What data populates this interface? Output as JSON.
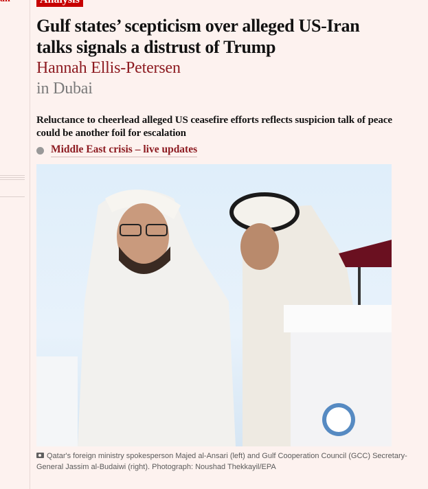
{
  "left_column": {
    "label": "an"
  },
  "article": {
    "kicker": "Analysis",
    "headline": "Gulf states’ scepticism over alleged US-Iran talks signals a distrust of Trump",
    "byline": "Hannah Ellis-Petersen",
    "location": "in Dubai",
    "standfirst": "Reluctance to cheerlead alleged US ceasefire efforts reflects suspicion talk of peace could be another foil for escalation",
    "live_link": "Middle East crisis – live updates",
    "caption": "Qatar's foreign ministry spokesperson Majed al-Ansari (left) and Gulf Cooperation Council (GCC) Secretary-General Jassim al-Budaiwi (right). Photograph: Noushad Thekkayil/EPA"
  },
  "colors": {
    "background": "#fdf2ef",
    "accent": "#c70000",
    "byline": "#8d1b21"
  }
}
